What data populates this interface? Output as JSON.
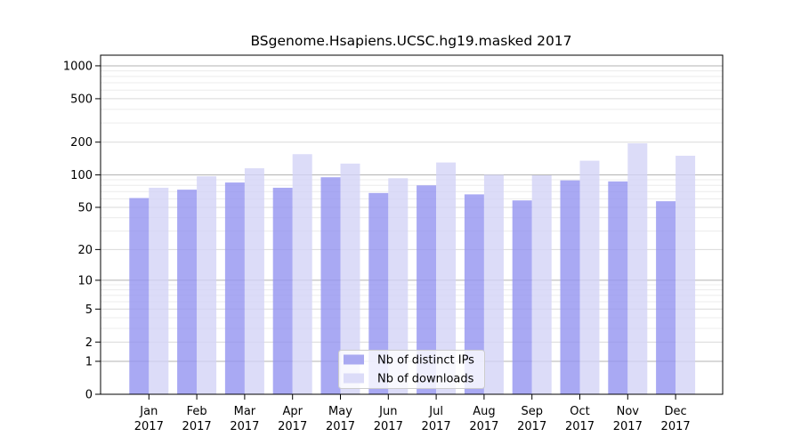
{
  "chart_data": {
    "type": "bar",
    "title": "BSgenome.Hsapiens.UCSC.hg19.masked 2017",
    "categories": [
      "Jan",
      "Feb",
      "Mar",
      "Apr",
      "May",
      "Jun",
      "Jul",
      "Aug",
      "Sep",
      "Oct",
      "Nov",
      "Dec"
    ],
    "x_year": "2017",
    "series": [
      {
        "name": "Nb of distinct IPs",
        "color": "#9494f0",
        "values": [
          61,
          73,
          85,
          76,
          95,
          68,
          80,
          66,
          58,
          89,
          87,
          57
        ]
      },
      {
        "name": "Nb of downloads",
        "color": "#d3d3f6",
        "values": [
          76,
          97,
          115,
          155,
          127,
          93,
          130,
          100,
          99,
          135,
          195,
          150
        ]
      }
    ],
    "series_swatch": [
      "#a9a9f1",
      "#dcdcf8"
    ],
    "y_ticks": [
      0,
      1,
      2,
      5,
      10,
      20,
      50,
      100,
      200,
      500,
      1000
    ],
    "y_scale": "log1p",
    "ylim": [
      0,
      1250
    ],
    "xlabel": "",
    "ylabel": "",
    "grid": true,
    "legend_position": "lower center"
  }
}
